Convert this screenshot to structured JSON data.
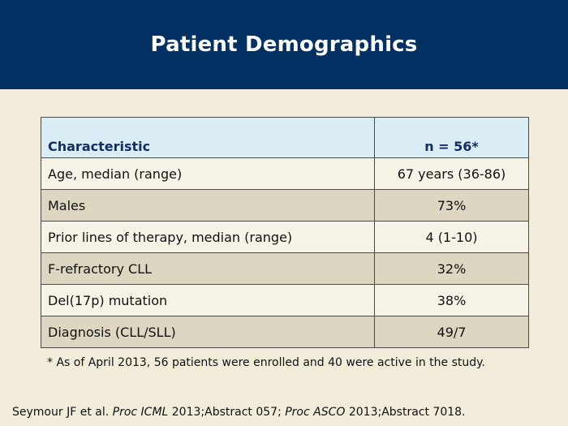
{
  "title": "Patient Demographics",
  "table": {
    "headers": [
      "Characteristic",
      "n = 56*"
    ],
    "rows": [
      [
        "Age, median (range)",
        "67 years (36-86)"
      ],
      [
        "Males",
        "73%"
      ],
      [
        "Prior lines of therapy, median (range)",
        "4 (1-10)"
      ],
      [
        "F-refractory CLL",
        "32%"
      ],
      [
        "Del(17p) mutation",
        "38%"
      ],
      [
        "Diagnosis (CLL/SLL)",
        "49/7"
      ]
    ]
  },
  "footnote": "* As of April 2013, 56 patients were enrolled and 40 were active in the study.",
  "citation": {
    "part1": "Seymour JF et al. ",
    "journal1": "Proc ICML",
    "part2": " 2013;Abstract 057; ",
    "journal2": "Proc ASCO",
    "part3": " 2013;Abstract 7018."
  }
}
